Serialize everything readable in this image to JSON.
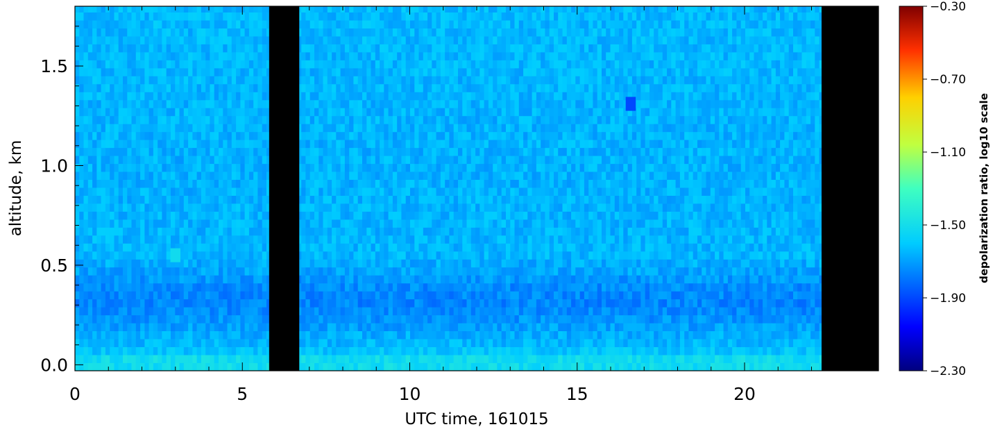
{
  "chart_data": {
    "type": "heatmap",
    "title": "",
    "xlabel": "UTC time, 161015",
    "ylabel": "altitude, km",
    "xlim": [
      0,
      24
    ],
    "ylim": [
      -0.03,
      1.8
    ],
    "x_ticks": [
      0,
      5,
      10,
      15,
      20
    ],
    "x_tick_labels": [
      "0",
      "5",
      "10",
      "15",
      "20"
    ],
    "y_ticks": [
      0.0,
      0.5,
      1.0,
      1.5
    ],
    "y_tick_labels": [
      "0.0",
      "0.5",
      "1.0",
      "1.5"
    ],
    "colorbar": {
      "label": "depolarization ratio, log10 scale",
      "range": [
        -2.3,
        -0.3
      ],
      "ticks": [
        -0.3,
        -0.7,
        -1.1,
        -1.5,
        -1.9,
        -2.3
      ],
      "tick_labels": [
        "−0.30",
        "−0.70",
        "−1.10",
        "−1.50",
        "−1.90",
        "−2.30"
      ],
      "colormap": "rainbow"
    },
    "background_value": -1.66,
    "altitude_profile": [
      {
        "altitude_km": 0.0,
        "value": -1.52
      },
      {
        "altitude_km": 0.03,
        "value": -1.52
      },
      {
        "altitude_km": 0.08,
        "value": -1.63
      },
      {
        "altitude_km": 0.15,
        "value": -1.67
      },
      {
        "altitude_km": 0.22,
        "value": -1.72
      },
      {
        "altitude_km": 0.3,
        "value": -1.76
      },
      {
        "altitude_km": 0.38,
        "value": -1.75
      },
      {
        "altitude_km": 0.45,
        "value": -1.7
      },
      {
        "altitude_km": 0.55,
        "value": -1.65
      },
      {
        "altitude_km": 1.0,
        "value": -1.66
      },
      {
        "altitude_km": 1.8,
        "value": -1.64
      }
    ],
    "no_data_intervals": [
      [
        5.8,
        6.7
      ],
      [
        22.3,
        24.0
      ]
    ],
    "features": [
      {
        "time": 16.6,
        "altitude_km": 1.31,
        "value": -1.9
      },
      {
        "time": 3.0,
        "altitude_km": 0.55,
        "value": -1.52
      }
    ]
  }
}
